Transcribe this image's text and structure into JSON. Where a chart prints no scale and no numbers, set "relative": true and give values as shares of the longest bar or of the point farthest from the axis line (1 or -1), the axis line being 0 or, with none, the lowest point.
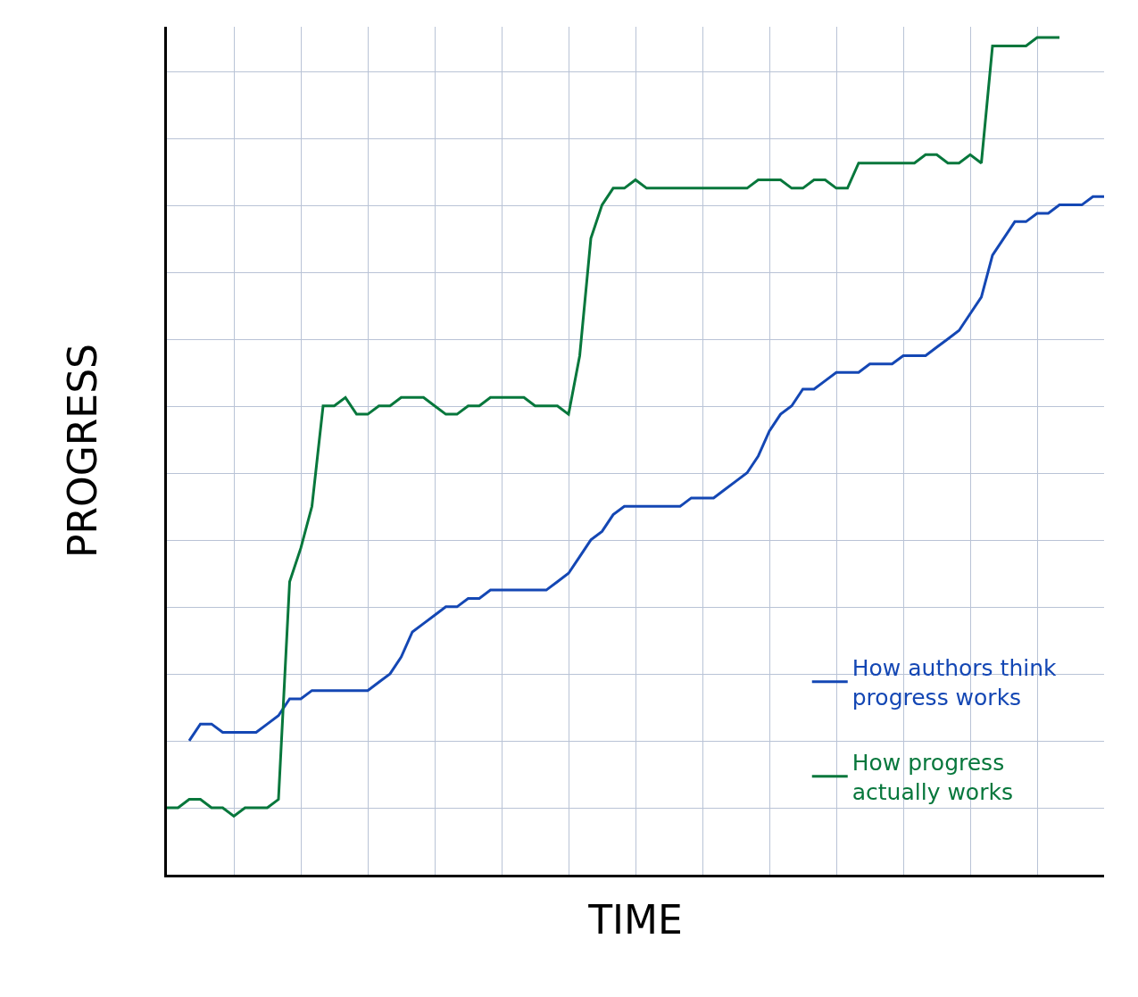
{
  "chart_data": {
    "type": "line",
    "relative": true,
    "xlabel": "TIME",
    "ylabel": "PROGRESS",
    "categories": [
      null,
      null,
      null,
      null,
      null,
      null,
      null,
      null,
      null,
      null,
      null,
      null,
      null,
      null,
      null,
      null,
      null,
      null,
      null,
      null,
      null,
      null,
      null,
      null,
      null,
      null,
      null,
      null,
      null,
      null,
      null,
      null,
      null,
      null,
      null,
      null,
      null,
      null,
      null,
      null,
      null,
      null,
      null,
      null,
      null,
      null,
      null,
      null,
      null,
      null,
      null,
      null,
      null,
      null,
      null,
      null,
      null,
      null,
      null,
      null,
      null,
      null,
      null,
      null,
      null,
      null,
      null,
      null,
      null,
      null,
      null,
      null,
      null,
      null,
      null,
      null,
      null,
      null,
      null,
      null,
      null,
      null,
      null,
      null,
      null
    ],
    "series": [
      {
        "name": "How authors think progress works",
        "color": "#1447b4",
        "values": [
          null,
          null,
          0.16,
          0.18,
          0.18,
          0.17,
          0.17,
          0.17,
          0.17,
          0.18,
          0.19,
          0.21,
          0.21,
          0.22,
          0.22,
          0.22,
          0.22,
          0.22,
          0.22,
          0.23,
          0.24,
          0.26,
          0.29,
          0.3,
          0.31,
          0.32,
          0.32,
          0.33,
          0.33,
          0.34,
          0.34,
          0.34,
          0.34,
          0.34,
          0.34,
          0.35,
          0.36,
          0.38,
          0.4,
          0.41,
          0.43,
          0.44,
          0.44,
          0.44,
          0.44,
          0.44,
          0.44,
          0.45,
          0.45,
          0.45,
          0.46,
          0.47,
          0.48,
          0.5,
          0.53,
          0.55,
          0.56,
          0.58,
          0.58,
          0.59,
          0.6,
          0.6,
          0.6,
          0.61,
          0.61,
          0.61,
          0.62,
          0.62,
          0.62,
          0.63,
          0.64,
          0.65,
          0.67,
          0.69,
          0.74,
          0.76,
          0.78,
          0.78,
          0.79,
          0.79,
          0.8,
          0.8,
          0.8,
          0.81,
          0.81
        ]
      },
      {
        "name": "How progress actually works",
        "color": "#07773c",
        "values": [
          0.08,
          0.08,
          0.09,
          0.09,
          0.08,
          0.08,
          0.07,
          0.08,
          0.08,
          0.08,
          0.09,
          0.35,
          0.39,
          0.44,
          0.56,
          0.56,
          0.57,
          0.55,
          0.55,
          0.56,
          0.56,
          0.57,
          0.57,
          0.57,
          0.56,
          0.55,
          0.55,
          0.56,
          0.56,
          0.57,
          0.57,
          0.57,
          0.57,
          0.56,
          0.56,
          0.56,
          0.55,
          0.62,
          0.76,
          0.8,
          0.82,
          0.82,
          0.83,
          0.82,
          0.82,
          0.82,
          0.82,
          0.82,
          0.82,
          0.82,
          0.82,
          0.82,
          0.82,
          0.83,
          0.83,
          0.83,
          0.82,
          0.82,
          0.83,
          0.83,
          0.82,
          0.82,
          0.85,
          0.85,
          0.85,
          0.85,
          0.85,
          0.85,
          0.86,
          0.86,
          0.85,
          0.85,
          0.86,
          0.85,
          0.99,
          0.99,
          0.99,
          0.99,
          1.0,
          1.0,
          1.0,
          null,
          null,
          null,
          null
        ]
      }
    ],
    "legend": "bottom right",
    "grid": true,
    "line_style": "solid"
  }
}
